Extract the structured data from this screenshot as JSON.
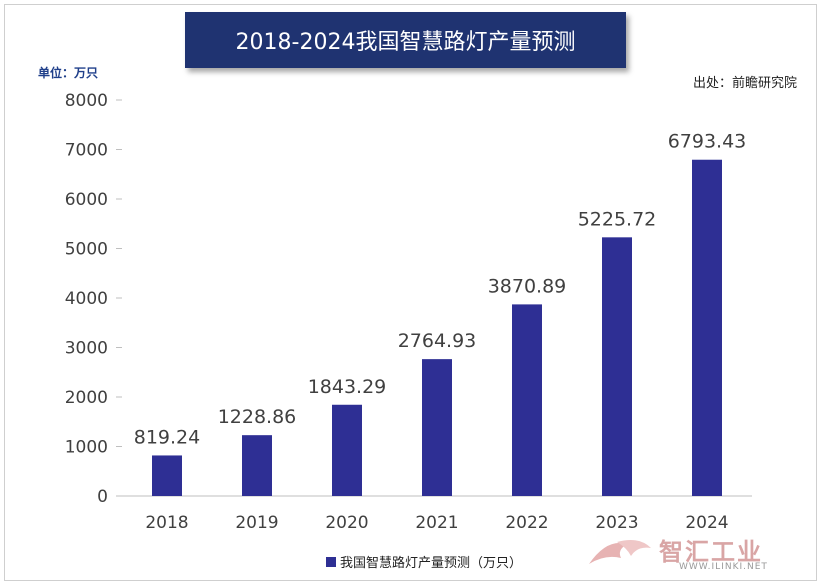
{
  "header": {
    "title": "2018-2024我国智慧路灯产量预测",
    "unit": "单位：万只",
    "source": "出处：前瞻研究院"
  },
  "chart_data": {
    "type": "bar",
    "categories": [
      "2018",
      "2019",
      "2020",
      "2021",
      "2022",
      "2023",
      "2024"
    ],
    "series": [
      {
        "name": "我国智慧路灯产量预测（万只）",
        "values": [
          819.24,
          1228.86,
          1843.29,
          2764.93,
          3870.89,
          5225.72,
          6793.43
        ]
      }
    ],
    "data_labels": [
      "819.24",
      "1228.86",
      "1843.29",
      "2764.93",
      "3870.89",
      "5225.72",
      "6793.43"
    ],
    "ylim": [
      0,
      8000
    ],
    "yticks": [
      0,
      1000,
      2000,
      3000,
      4000,
      5000,
      6000,
      7000,
      8000
    ],
    "grid": false,
    "legend_position": "bottom",
    "bar_color": "#2e2f94"
  },
  "legend": {
    "label": "我国智慧路灯产量预测（万只）"
  },
  "watermark": {
    "name": "智汇工业",
    "url": "WWW.ILINKI.NET"
  }
}
